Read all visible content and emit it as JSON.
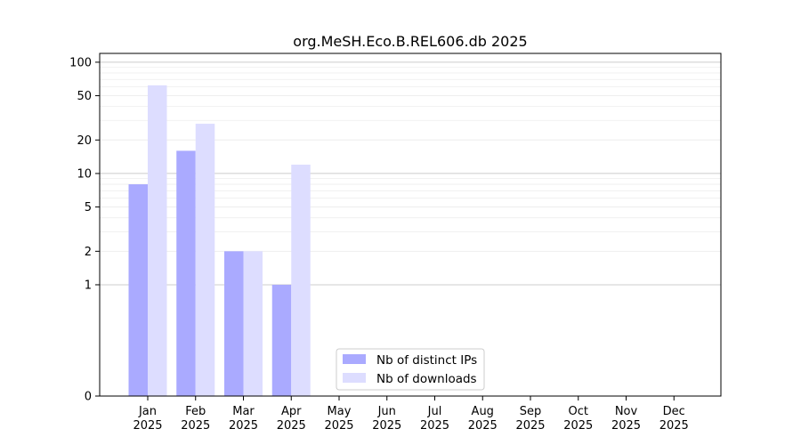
{
  "chart_data": {
    "type": "bar",
    "title": "org.MeSH.Eco.B.REL606.db 2025",
    "xlabel": "",
    "ylabel": "",
    "y_scale": "symlog",
    "ylim": [
      0,
      120
    ],
    "y_ticks": [
      0,
      1,
      2,
      5,
      10,
      20,
      50,
      100
    ],
    "grid": true,
    "legend_position": "bottom-center",
    "categories": [
      {
        "month": "Jan",
        "year": "2025"
      },
      {
        "month": "Feb",
        "year": "2025"
      },
      {
        "month": "Mar",
        "year": "2025"
      },
      {
        "month": "Apr",
        "year": "2025"
      },
      {
        "month": "May",
        "year": "2025"
      },
      {
        "month": "Jun",
        "year": "2025"
      },
      {
        "month": "Jul",
        "year": "2025"
      },
      {
        "month": "Aug",
        "year": "2025"
      },
      {
        "month": "Sep",
        "year": "2025"
      },
      {
        "month": "Oct",
        "year": "2025"
      },
      {
        "month": "Nov",
        "year": "2025"
      },
      {
        "month": "Dec",
        "year": "2025"
      }
    ],
    "series": [
      {
        "name": "Nb of distinct IPs",
        "color": "#aaaaff",
        "values": [
          8,
          16,
          2,
          1,
          0,
          0,
          0,
          0,
          0,
          0,
          0,
          0
        ]
      },
      {
        "name": "Nb of downloads",
        "color": "#ddddff",
        "values": [
          62,
          28,
          2,
          12,
          0,
          0,
          0,
          0,
          0,
          0,
          0,
          0
        ]
      }
    ]
  }
}
